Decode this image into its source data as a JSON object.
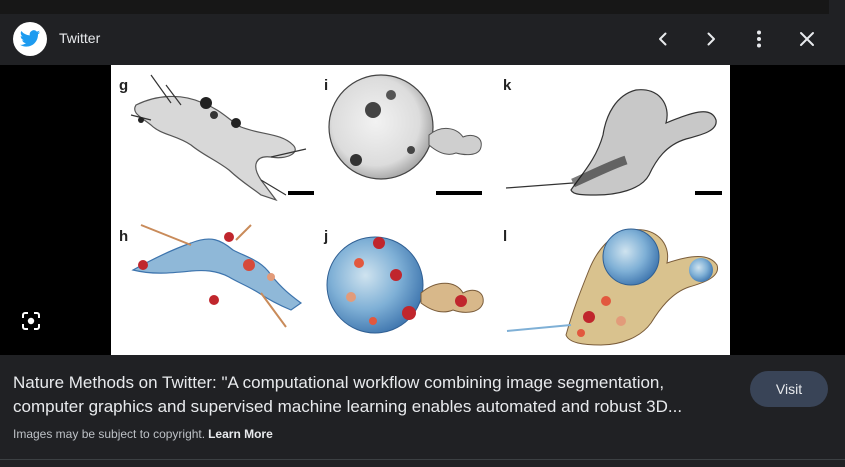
{
  "source": {
    "name": "Twitter",
    "logo_icon": "twitter-bird-icon",
    "brand_color": "#1d9bf0"
  },
  "toolbar": {
    "prev_icon": "chevron-left-icon",
    "next_icon": "chevron-right-icon",
    "more_icon": "more-vertical-icon",
    "close_icon": "close-icon"
  },
  "image": {
    "panel_labels": {
      "top": [
        "g",
        "i",
        "k"
      ],
      "bottom": [
        "h",
        "j",
        "l"
      ]
    }
  },
  "lens_icon": "google-lens-icon",
  "result": {
    "title_line1": "Nature Methods on Twitter: \"A computational workflow combining image segmentation,",
    "title_line2": "computer graphics and supervised machine learning enables automated and robust 3D...",
    "copyright_text": "Images may be subject to copyright.",
    "learn_more": "Learn More",
    "visit_label": "Visit"
  },
  "colors": {
    "background": "#202124",
    "visit_button": "#394457",
    "stage": "#000000"
  }
}
